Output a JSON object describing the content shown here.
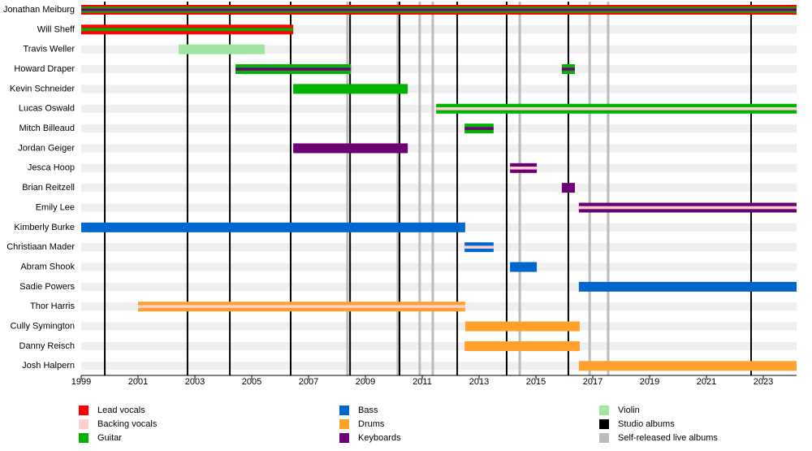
{
  "chart_data": {
    "type": "timeline",
    "xlim": [
      1999,
      2024.17
    ],
    "xticks": [
      1999,
      2001,
      2003,
      2005,
      2007,
      2009,
      2011,
      2013,
      2015,
      2017,
      2019,
      2021,
      2023
    ],
    "legend": [
      {
        "name": "Lead vocals",
        "color": "#ff0000"
      },
      {
        "name": "Backing vocals",
        "color": "#ffd0d0"
      },
      {
        "name": "Guitar",
        "color": "#00b300"
      },
      {
        "name": "Bass",
        "color": "#0066cc"
      },
      {
        "name": "Drums",
        "color": "#ffa12c"
      },
      {
        "name": "Keyboards",
        "color": "#6e0076"
      },
      {
        "name": "Violin",
        "color": "#a0e6a0"
      },
      {
        "name": "Studio albums",
        "color": "#000000"
      },
      {
        "name": "Self-released live albums",
        "color": "#bbbbbb"
      }
    ],
    "studio_albums": [
      1999.83,
      2002.74,
      2004.23,
      2006.37,
      2008.46,
      2010.2,
      2012.23,
      2013.97,
      2016.14,
      2022.57
    ],
    "live_albums": [
      2008.37,
      2010.14,
      2010.91,
      2011.37,
      2014.43,
      2016.89,
      2017.54
    ],
    "members": [
      {
        "name": "Jonathan Meiburg",
        "periods": [
          {
            "start": 1999,
            "end": 2024.17,
            "roles": [
              "Lead vocals",
              "Guitar",
              "Keyboards"
            ]
          }
        ]
      },
      {
        "name": "Will Sheff",
        "periods": [
          {
            "start": 1999,
            "end": 2006.46,
            "roles": [
              "Lead vocals",
              "Guitar"
            ]
          }
        ]
      },
      {
        "name": "Travis Weller",
        "periods": [
          {
            "start": 2002.43,
            "end": 2005.46,
            "roles": [
              "Violin"
            ]
          }
        ]
      },
      {
        "name": "Howard Draper",
        "periods": [
          {
            "start": 2004.43,
            "end": 2008.49,
            "roles": [
              "Guitar",
              "Keyboards"
            ]
          },
          {
            "start": 2015.91,
            "end": 2016.37,
            "roles": [
              "Guitar",
              "Keyboards"
            ]
          }
        ]
      },
      {
        "name": "Kevin Schneider",
        "periods": [
          {
            "start": 2006.46,
            "end": 2010.49,
            "roles": [
              "Guitar"
            ]
          }
        ]
      },
      {
        "name": "Lucas Oswald",
        "periods": [
          {
            "start": 2011.49,
            "end": 2024.17,
            "roles": [
              "Guitar",
              "Backing vocals"
            ]
          }
        ]
      },
      {
        "name": "Mitch Billeaud",
        "periods": [
          {
            "start": 2012.49,
            "end": 2013.51,
            "roles": [
              "Guitar",
              "Keyboards"
            ]
          }
        ]
      },
      {
        "name": "Jordan Geiger",
        "periods": [
          {
            "start": 2006.46,
            "end": 2010.49,
            "roles": [
              "Keyboards"
            ]
          }
        ]
      },
      {
        "name": "Jesca Hoop",
        "periods": [
          {
            "start": 2014.09,
            "end": 2015.03,
            "roles": [
              "Keyboards",
              "Backing vocals"
            ]
          }
        ]
      },
      {
        "name": "Brian Reitzell",
        "periods": [
          {
            "start": 2015.91,
            "end": 2016.37,
            "roles": [
              "Keyboards"
            ]
          }
        ]
      },
      {
        "name": "Emily Lee",
        "periods": [
          {
            "start": 2016.51,
            "end": 2024.17,
            "roles": [
              "Keyboards",
              "Backing vocals"
            ]
          }
        ]
      },
      {
        "name": "Kimberly Burke",
        "periods": [
          {
            "start": 1999,
            "end": 2012.51,
            "roles": [
              "Bass"
            ]
          }
        ]
      },
      {
        "name": "Christiaan Mader",
        "periods": [
          {
            "start": 2012.49,
            "end": 2013.51,
            "roles": [
              "Bass",
              "Backing vocals"
            ]
          }
        ]
      },
      {
        "name": "Abram Shook",
        "periods": [
          {
            "start": 2014.09,
            "end": 2015.03,
            "roles": [
              "Bass"
            ]
          }
        ]
      },
      {
        "name": "Sadie Powers",
        "periods": [
          {
            "start": 2016.51,
            "end": 2024.17,
            "roles": [
              "Bass"
            ]
          }
        ]
      },
      {
        "name": "Thor Harris",
        "periods": [
          {
            "start": 2001,
            "end": 2012.51,
            "roles": [
              "Drums",
              "Backing vocals"
            ]
          }
        ]
      },
      {
        "name": "Cully Symington",
        "periods": [
          {
            "start": 2012.51,
            "end": 2016.54,
            "roles": [
              "Drums"
            ]
          }
        ]
      },
      {
        "name": "Danny Reisch",
        "periods": [
          {
            "start": 2012.49,
            "end": 2016.54,
            "roles": [
              "Drums"
            ]
          }
        ]
      },
      {
        "name": "Josh Halpern",
        "periods": [
          {
            "start": 2016.51,
            "end": 2024.17,
            "roles": [
              "Drums"
            ]
          }
        ]
      }
    ]
  }
}
